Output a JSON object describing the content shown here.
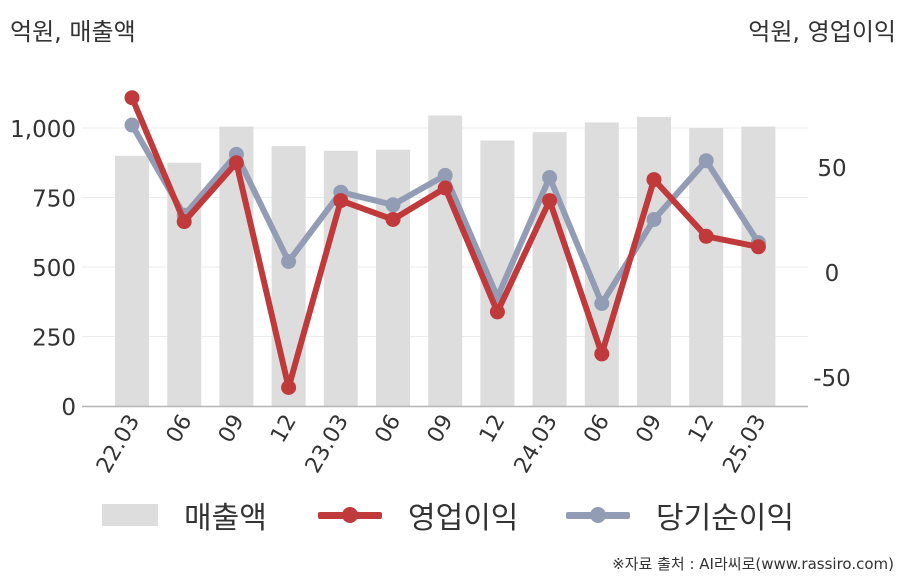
{
  "axes": {
    "left_unit": "억원, 매출액",
    "right_unit": "억원, 영업이익"
  },
  "chart_data": {
    "type": "bar+line",
    "categories": [
      "22.03",
      "06",
      "09",
      "12",
      "23.03",
      "06",
      "09",
      "12",
      "24.03",
      "06",
      "09",
      "12",
      "25.03"
    ],
    "series": [
      {
        "name": "매출액",
        "type": "bar",
        "axis": "left",
        "color": "#dddddd",
        "values": [
          900,
          875,
          1005,
          935,
          918,
          922,
          1045,
          955,
          985,
          1020,
          1040,
          1000,
          1005
        ]
      },
      {
        "name": "영업이익",
        "type": "line",
        "axis": "right",
        "color": "#c0393b",
        "values": [
          83,
          24,
          52,
          -55,
          34,
          25,
          40,
          -19,
          34,
          -39,
          44,
          17,
          12
        ]
      },
      {
        "name": "당기순이익",
        "type": "line",
        "axis": "right",
        "color": "#929db5",
        "values": [
          70,
          27,
          56,
          5,
          38,
          32,
          46,
          -12,
          45,
          -15,
          25,
          53,
          14
        ]
      }
    ],
    "left_axis": {
      "ticks": [
        0,
        250,
        500,
        750,
        "1,000"
      ],
      "ylim": [
        0,
        1150
      ]
    },
    "right_axis": {
      "ticks": [
        -50,
        0,
        50
      ],
      "ylim": [
        -65,
        100
      ]
    },
    "grid": "horizontal",
    "legend_position": "bottom"
  },
  "legend": {
    "bar_label": "매출액",
    "op_label": "영업이익",
    "net_label": "당기순이익"
  },
  "source": "※자료 출처 : AI라씨로(www.rassiro.com)"
}
